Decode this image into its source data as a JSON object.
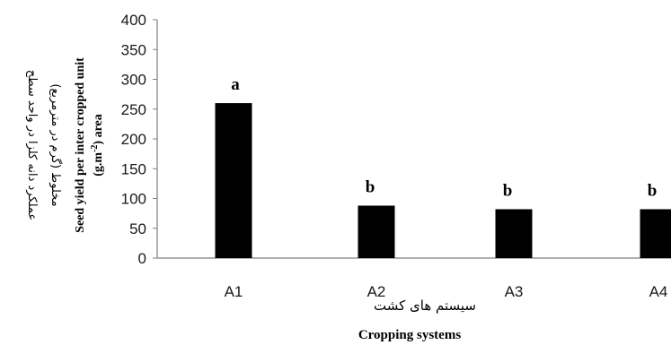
{
  "chart_data": {
    "type": "bar",
    "categories": [
      "A1",
      "A2",
      "A3",
      "A4"
    ],
    "values": [
      260,
      88,
      82,
      82
    ],
    "significance_letters": [
      "a",
      "b",
      "b",
      "b"
    ],
    "ylim": [
      0,
      400
    ],
    "yticks": [
      "0",
      "50",
      "100",
      "150",
      "200",
      "250",
      "300",
      "350",
      "400"
    ],
    "ylabel": {
      "fa_line1": "عملکرد دانه کلزا در واحد سطح",
      "fa_line2": "مخلوط (گرم در مترمربع)",
      "en_line1": "Seed yield per inter cropped unit",
      "en_line2": "(g.m-2) area"
    },
    "xlabel": {
      "fa": "سیستم های کشت",
      "en": "Cropping systems"
    },
    "bar_color": "#000000",
    "grid": false,
    "legend": "none"
  }
}
